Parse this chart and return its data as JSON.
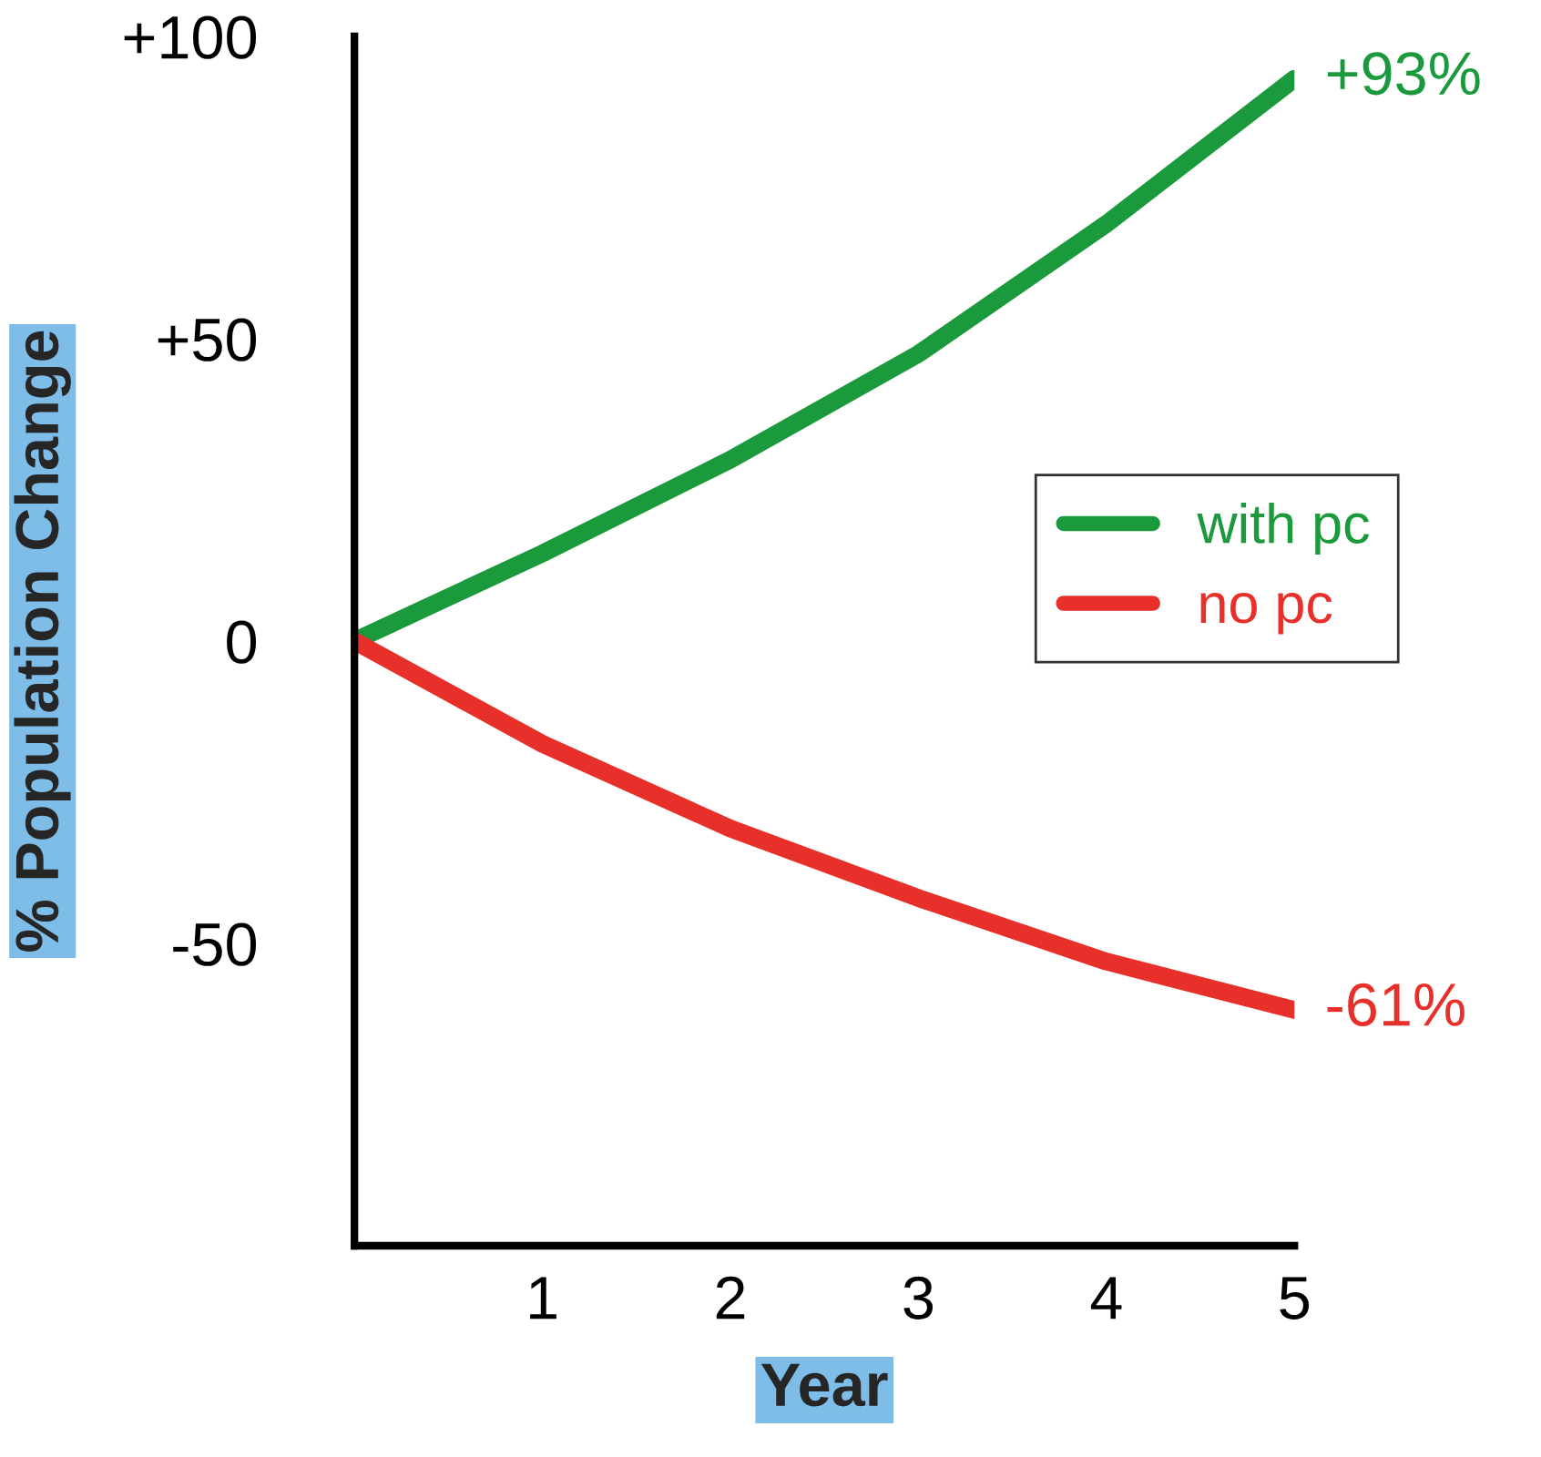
{
  "chart_data": {
    "type": "line",
    "xlabel": "Year",
    "ylabel": "% Population Change",
    "x": [
      0,
      1,
      2,
      3,
      4,
      5
    ],
    "series": [
      {
        "name": "with pc",
        "color": "#1a9a3c",
        "values": [
          0,
          14.5,
          30,
          47.5,
          69,
          93
        ]
      },
      {
        "name": "no pc",
        "color": "#e8302a",
        "values": [
          0,
          -17,
          -31,
          -42.5,
          -53,
          -61
        ]
      }
    ],
    "xlim": [
      0,
      5
    ],
    "xticks": [
      1,
      2,
      3,
      4,
      5
    ],
    "ylim": [
      -100,
      100
    ],
    "yticks": [
      {
        "value": 100,
        "label": "+100"
      },
      {
        "value": 50,
        "label": "+50"
      },
      0,
      -50
    ],
    "annotations": [
      {
        "text": "+93%",
        "x": 5,
        "y": 93
      },
      {
        "text": "-61%",
        "x": 5,
        "y": -61
      }
    ],
    "legend": "right",
    "grid": false,
    "marker": "none",
    "line_style": "solid"
  }
}
